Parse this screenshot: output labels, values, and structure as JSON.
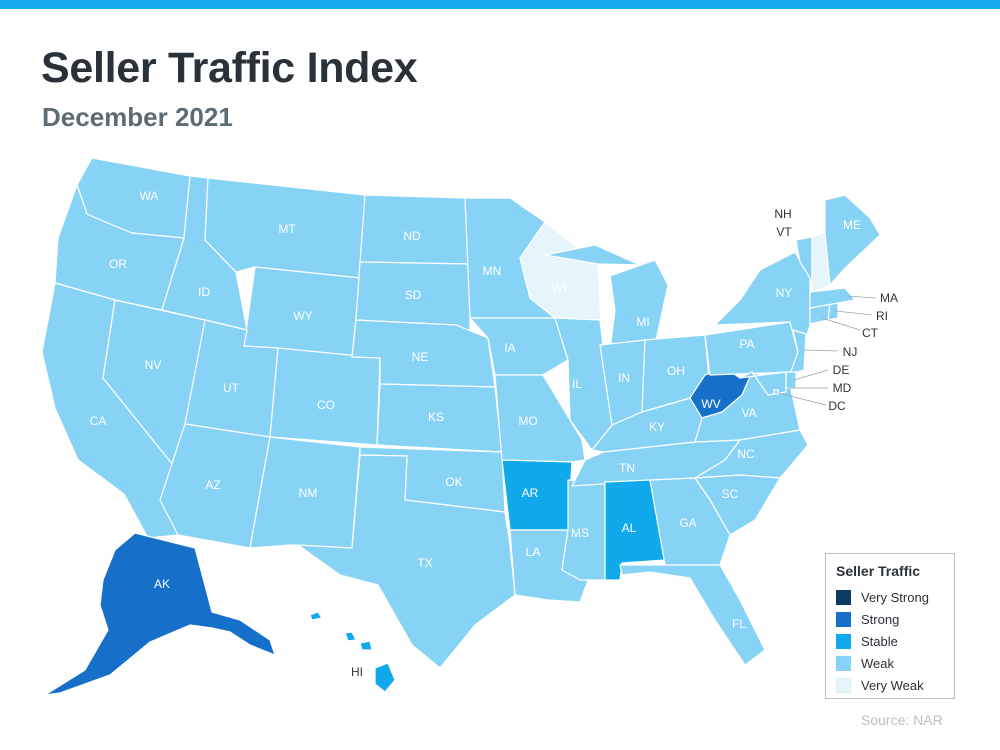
{
  "header": {
    "title": "Seller Traffic Index",
    "subtitle": "December 2021"
  },
  "legend": {
    "title": "Seller Traffic",
    "items": [
      {
        "label": "Very Strong",
        "color": "#0b3a63"
      },
      {
        "label": "Strong",
        "color": "#1670c9"
      },
      {
        "label": "Stable",
        "color": "#10a9ec"
      },
      {
        "label": "Weak",
        "color": "#86d3f5"
      },
      {
        "label": "Very Weak",
        "color": "#e6f5fc"
      }
    ]
  },
  "states": {
    "WA": {
      "label": "WA",
      "level": "Weak"
    },
    "OR": {
      "label": "OR",
      "level": "Weak"
    },
    "CA": {
      "label": "CA",
      "level": "Weak"
    },
    "ID": {
      "label": "ID",
      "level": "Weak"
    },
    "NV": {
      "label": "NV",
      "level": "Weak"
    },
    "MT": {
      "label": "MT",
      "level": "Weak"
    },
    "WY": {
      "label": "WY",
      "level": "Weak"
    },
    "UT": {
      "label": "UT",
      "level": "Weak"
    },
    "AZ": {
      "label": "AZ",
      "level": "Weak"
    },
    "CO": {
      "label": "CO",
      "level": "Weak"
    },
    "NM": {
      "label": "NM",
      "level": "Weak"
    },
    "ND": {
      "label": "ND",
      "level": "Weak"
    },
    "SD": {
      "label": "SD",
      "level": "Weak"
    },
    "NE": {
      "label": "NE",
      "level": "Weak"
    },
    "KS": {
      "label": "KS",
      "level": "Weak"
    },
    "OK": {
      "label": "OK",
      "level": "Weak"
    },
    "TX": {
      "label": "TX",
      "level": "Weak"
    },
    "MN": {
      "label": "MN",
      "level": "Weak"
    },
    "IA": {
      "label": "IA",
      "level": "Weak"
    },
    "MO": {
      "label": "MO",
      "level": "Weak"
    },
    "AR": {
      "label": "AR",
      "level": "Stable"
    },
    "LA": {
      "label": "LA",
      "level": "Weak"
    },
    "WI": {
      "label": "WI",
      "level": "Very Weak"
    },
    "IL": {
      "label": "IL",
      "level": "Weak"
    },
    "MS": {
      "label": "MS",
      "level": "Weak"
    },
    "MI": {
      "label": "MI",
      "level": "Weak"
    },
    "IN": {
      "label": "IN",
      "level": "Weak"
    },
    "KY": {
      "label": "KY",
      "level": "Weak"
    },
    "TN": {
      "label": "TN",
      "level": "Weak"
    },
    "AL": {
      "label": "AL",
      "level": "Stable"
    },
    "OH": {
      "label": "OH",
      "level": "Weak"
    },
    "WV": {
      "label": "WV",
      "level": "Strong"
    },
    "VA": {
      "label": "VA",
      "level": "Weak"
    },
    "NC": {
      "label": "NC",
      "level": "Weak"
    },
    "SC": {
      "label": "SC",
      "level": "Weak"
    },
    "GA": {
      "label": "GA",
      "level": "Weak"
    },
    "FL": {
      "label": "FL",
      "level": "Weak"
    },
    "PA": {
      "label": "PA",
      "level": "Weak"
    },
    "NY": {
      "label": "NY",
      "level": "Weak"
    },
    "NJ": {
      "label": "NJ",
      "level": "Weak"
    },
    "DE": {
      "label": "DE",
      "level": "Weak"
    },
    "MD": {
      "label": "MD",
      "level": "Weak"
    },
    "DC": {
      "label": "DC",
      "level": "Weak"
    },
    "CT": {
      "label": "CT",
      "level": "Weak"
    },
    "RI": {
      "label": "RI",
      "level": "Weak"
    },
    "MA": {
      "label": "MA",
      "level": "Weak"
    },
    "VT": {
      "label": "VT",
      "level": "Weak"
    },
    "NH": {
      "label": "NH",
      "level": "Very Weak"
    },
    "ME": {
      "label": "ME",
      "level": "Weak"
    },
    "AK": {
      "label": "AK",
      "level": "Strong"
    },
    "HI": {
      "label": "HI",
      "level": "Stable"
    }
  },
  "source": "Source: NAR"
}
